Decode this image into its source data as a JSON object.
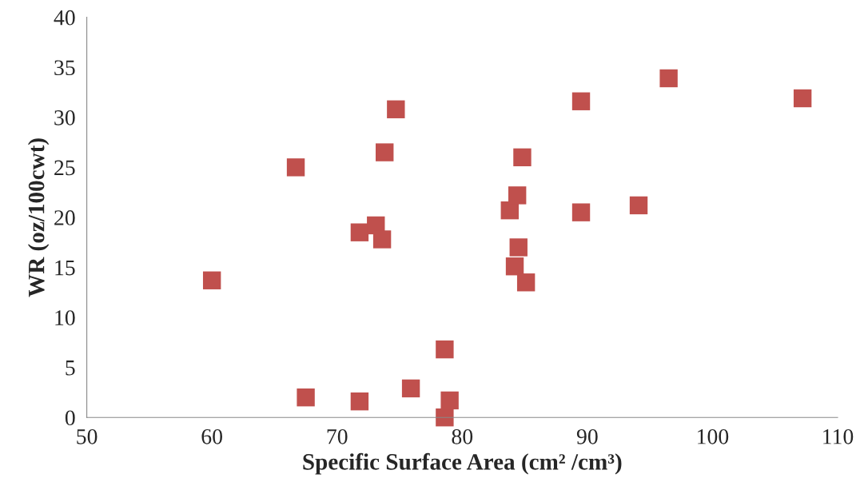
{
  "chart_data": {
    "type": "scatter",
    "xlabel": "Specific Surface Area (cm² /cm³)",
    "ylabel": "WR (oz/100cwt)",
    "x": [
      60,
      66.7,
      67.5,
      71.8,
      71.8,
      73.1,
      73.6,
      73.8,
      74.7,
      75.9,
      78.6,
      78.6,
      79.0,
      83.8,
      84.2,
      84.4,
      84.5,
      84.8,
      85.1,
      89.5,
      89.5,
      94.1,
      96.5,
      107.2
    ],
    "values": [
      13.7,
      25.0,
      2.0,
      18.5,
      1.6,
      19.2,
      17.8,
      26.5,
      30.8,
      2.9,
      6.8,
      0,
      1.7,
      20.7,
      15.1,
      22.2,
      17.0,
      26.0,
      13.5,
      31.6,
      20.5,
      21.2,
      33.9,
      31.9
    ],
    "color": "#c0504d",
    "marker": "square",
    "grid": false,
    "legend": false,
    "xlim": [
      50,
      110
    ],
    "xticks": [
      50,
      60,
      70,
      80,
      90,
      100,
      110
    ],
    "ylim": [
      0,
      40
    ],
    "yticks": [
      0,
      5,
      10,
      15,
      20,
      25,
      30,
      35,
      40
    ]
  }
}
